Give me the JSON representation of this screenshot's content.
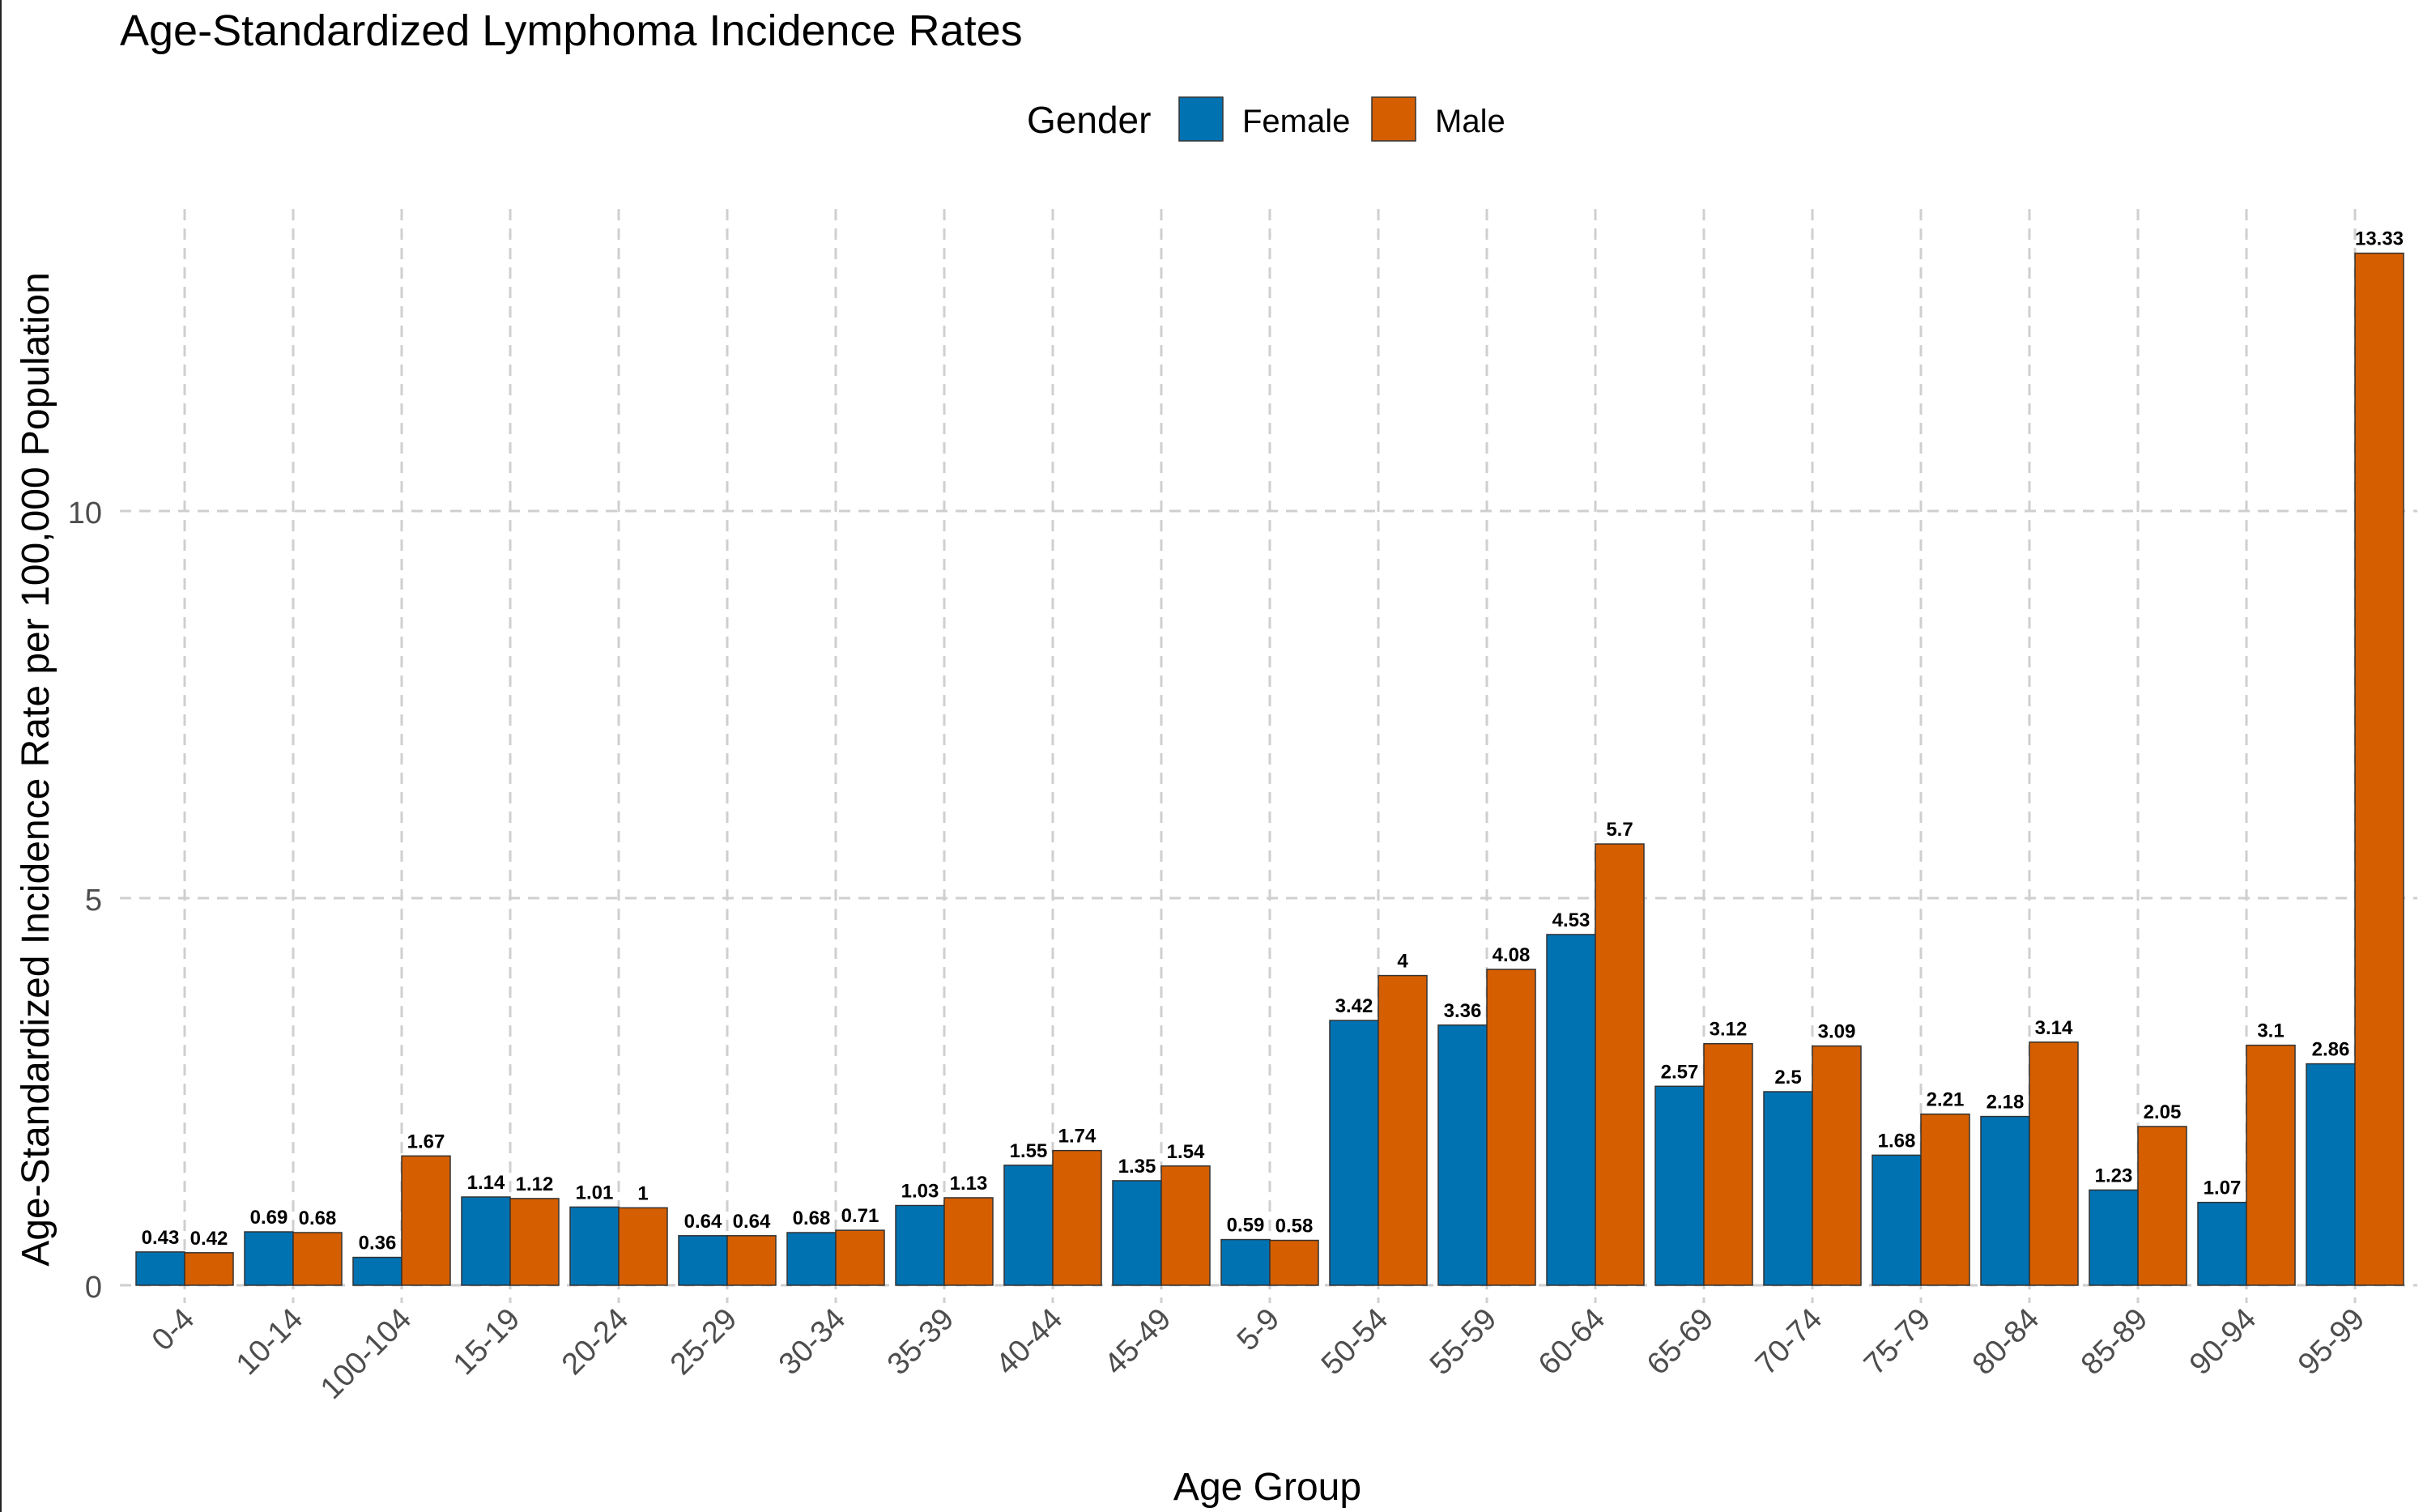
{
  "chart_data": {
    "type": "bar",
    "title": "Age-Standardized Lymphoma Incidence Rates",
    "xlabel": "Age Group",
    "ylabel": "Age-Standardized Incidence Rate per 100,000 Population",
    "ylim": [
      0,
      13.9
    ],
    "yticks": [
      0,
      5,
      10
    ],
    "legend": {
      "title": "Gender",
      "position": "top"
    },
    "categories": [
      "0-4",
      "10-14",
      "100-104",
      "15-19",
      "20-24",
      "25-29",
      "30-34",
      "35-39",
      "40-44",
      "45-49",
      "5-9",
      "50-54",
      "55-59",
      "60-64",
      "65-69",
      "70-74",
      "75-79",
      "80-84",
      "85-89",
      "90-94",
      "95-99"
    ],
    "series": [
      {
        "name": "Female",
        "color": "#0072B2",
        "values": [
          0.43,
          0.69,
          0.36,
          1.14,
          1.01,
          0.64,
          0.68,
          1.03,
          1.55,
          1.35,
          0.59,
          3.42,
          3.36,
          4.53,
          2.57,
          2.5,
          1.68,
          2.18,
          1.23,
          1.07,
          2.86
        ]
      },
      {
        "name": "Male",
        "color": "#D55E00",
        "values": [
          0.42,
          0.68,
          1.67,
          1.12,
          1,
          0.64,
          0.71,
          1.13,
          1.74,
          1.54,
          0.58,
          4,
          4.08,
          5.7,
          3.12,
          3.09,
          2.21,
          3.14,
          2.05,
          3.1,
          13.33
        ]
      }
    ]
  }
}
